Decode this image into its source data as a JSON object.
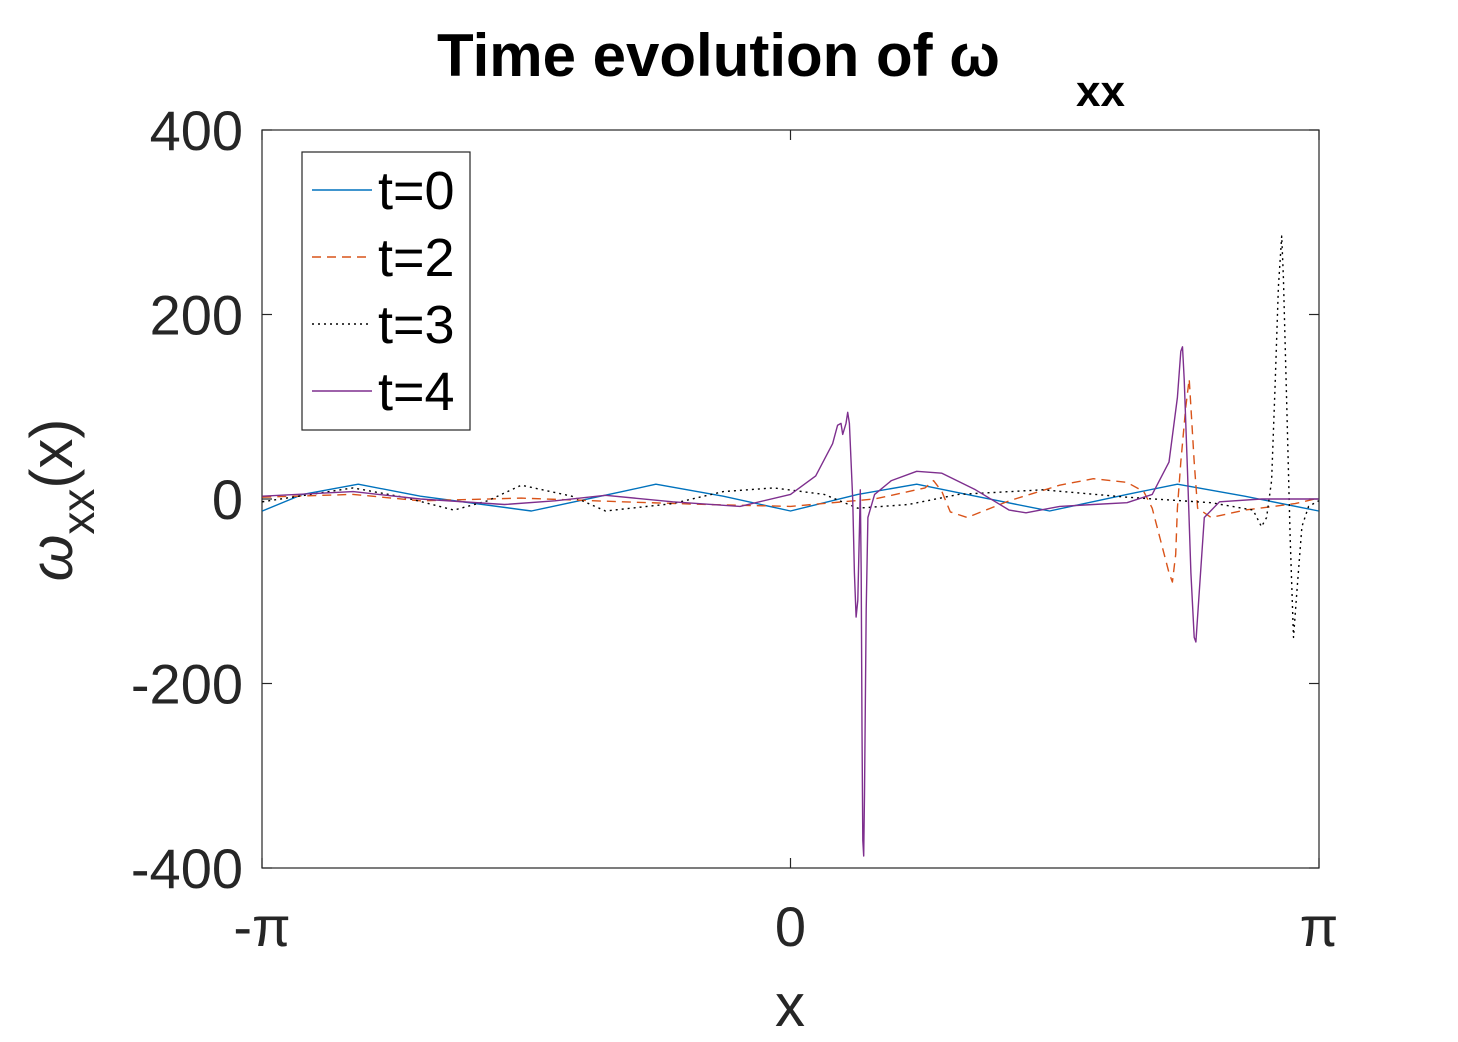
{
  "chart_data": {
    "type": "line",
    "title": "Time evolution of ω",
    "title_subscript": "xx",
    "xlabel": "x",
    "ylabel": "ω",
    "ylabel_subscript": "xx",
    "ylabel_suffix": "(x)",
    "xlim": [
      -3.14159,
      3.14159
    ],
    "ylim": [
      -400,
      400
    ],
    "xticks": [
      -3.14159,
      0,
      3.14159
    ],
    "xtick_labels": [
      "-π",
      "0",
      "π"
    ],
    "yticks": [
      400,
      200,
      0,
      -200,
      -400
    ],
    "ytick_labels": [
      "400",
      "200",
      "0",
      "-200",
      "-400"
    ],
    "grid": false,
    "legend_position": "top-left",
    "series": [
      {
        "name": "t=0",
        "color": "#0072BD",
        "dash": "solid",
        "points": [
          [
            -3.14,
            -13
          ],
          [
            -2.9,
            5
          ],
          [
            -2.57,
            16
          ],
          [
            -2.2,
            3
          ],
          [
            -1.54,
            -13
          ],
          [
            -1.0,
            8
          ],
          [
            -0.8,
            16
          ],
          [
            -0.4,
            3
          ],
          [
            0.0,
            -13
          ],
          [
            0.4,
            5
          ],
          [
            0.75,
            16
          ],
          [
            1.1,
            3
          ],
          [
            1.54,
            -13
          ],
          [
            2.0,
            5
          ],
          [
            2.3,
            16
          ],
          [
            2.7,
            3
          ],
          [
            3.14,
            -13
          ]
        ]
      },
      {
        "name": "t=2",
        "color": "#D95319",
        "dash": "dashed",
        "points": [
          [
            -3.14,
            2
          ],
          [
            -2.6,
            5
          ],
          [
            -2.2,
            -2
          ],
          [
            -1.6,
            1
          ],
          [
            -1.0,
            -3
          ],
          [
            -0.5,
            -6
          ],
          [
            0.0,
            -8
          ],
          [
            0.5,
            0
          ],
          [
            0.8,
            12
          ],
          [
            0.85,
            20
          ],
          [
            0.9,
            8
          ],
          [
            0.95,
            -14
          ],
          [
            1.05,
            -20
          ],
          [
            1.3,
            -2
          ],
          [
            1.6,
            15
          ],
          [
            1.8,
            22
          ],
          [
            2.0,
            18
          ],
          [
            2.1,
            8
          ],
          [
            2.15,
            -10
          ],
          [
            2.2,
            -45
          ],
          [
            2.25,
            -80
          ],
          [
            2.27,
            -90
          ],
          [
            2.29,
            -60
          ],
          [
            2.3,
            -10
          ],
          [
            2.32,
            40
          ],
          [
            2.35,
            100
          ],
          [
            2.37,
            130
          ],
          [
            2.38,
            100
          ],
          [
            2.4,
            40
          ],
          [
            2.42,
            -10
          ],
          [
            2.5,
            -20
          ],
          [
            2.7,
            -12
          ],
          [
            3.0,
            -5
          ],
          [
            3.14,
            1
          ]
        ]
      },
      {
        "name": "t=3",
        "color": "#000000",
        "dash": "dotted",
        "points": [
          [
            -3.14,
            -3
          ],
          [
            -2.6,
            12
          ],
          [
            -2.3,
            2
          ],
          [
            -2.0,
            -12
          ],
          [
            -1.8,
            -2
          ],
          [
            -1.6,
            15
          ],
          [
            -1.3,
            3
          ],
          [
            -1.1,
            -13
          ],
          [
            -0.7,
            -5
          ],
          [
            -0.4,
            8
          ],
          [
            -0.1,
            12
          ],
          [
            0.2,
            5
          ],
          [
            0.4,
            -10
          ],
          [
            0.7,
            -6
          ],
          [
            1.0,
            5
          ],
          [
            1.5,
            10
          ],
          [
            2.0,
            2
          ],
          [
            2.5,
            -4
          ],
          [
            2.75,
            -12
          ],
          [
            2.8,
            -30
          ],
          [
            2.83,
            -20
          ],
          [
            2.86,
            20
          ],
          [
            2.88,
            120
          ],
          [
            2.9,
            230
          ],
          [
            2.92,
            285
          ],
          [
            2.93,
            240
          ],
          [
            2.95,
            100
          ],
          [
            2.97,
            -40
          ],
          [
            2.99,
            -150
          ],
          [
            3.01,
            -100
          ],
          [
            3.04,
            -30
          ],
          [
            3.08,
            -8
          ],
          [
            3.14,
            -2
          ]
        ]
      },
      {
        "name": "t=4",
        "color": "#7E2F8E",
        "dash": "solid",
        "points": [
          [
            -3.14,
            3
          ],
          [
            -2.6,
            8
          ],
          [
            -2.2,
            0
          ],
          [
            -1.7,
            -6
          ],
          [
            -1.4,
            -2
          ],
          [
            -1.1,
            4
          ],
          [
            -0.7,
            -3
          ],
          [
            -0.3,
            -8
          ],
          [
            0.0,
            5
          ],
          [
            0.15,
            25
          ],
          [
            0.25,
            60
          ],
          [
            0.28,
            80
          ],
          [
            0.3,
            82
          ],
          [
            0.31,
            70
          ],
          [
            0.33,
            82
          ],
          [
            0.34,
            94
          ],
          [
            0.35,
            82
          ],
          [
            0.37,
            0
          ],
          [
            0.38,
            -80
          ],
          [
            0.39,
            -128
          ],
          [
            0.4,
            -110
          ],
          [
            0.41,
            -30
          ],
          [
            0.415,
            10
          ],
          [
            0.42,
            -80
          ],
          [
            0.425,
            -250
          ],
          [
            0.43,
            -370
          ],
          [
            0.435,
            -387
          ],
          [
            0.44,
            -320
          ],
          [
            0.45,
            -120
          ],
          [
            0.46,
            -20
          ],
          [
            0.5,
            5
          ],
          [
            0.6,
            20
          ],
          [
            0.75,
            30
          ],
          [
            0.9,
            28
          ],
          [
            1.1,
            10
          ],
          [
            1.3,
            -12
          ],
          [
            1.4,
            -15
          ],
          [
            1.6,
            -8
          ],
          [
            1.8,
            -6
          ],
          [
            2.0,
            -4
          ],
          [
            2.15,
            5
          ],
          [
            2.25,
            40
          ],
          [
            2.3,
            110
          ],
          [
            2.32,
            160
          ],
          [
            2.33,
            165
          ],
          [
            2.34,
            130
          ],
          [
            2.36,
            30
          ],
          [
            2.38,
            -80
          ],
          [
            2.4,
            -150
          ],
          [
            2.41,
            -155
          ],
          [
            2.43,
            -100
          ],
          [
            2.46,
            -20
          ],
          [
            2.55,
            -3
          ],
          [
            2.8,
            0
          ],
          [
            3.14,
            0
          ]
        ]
      }
    ]
  }
}
